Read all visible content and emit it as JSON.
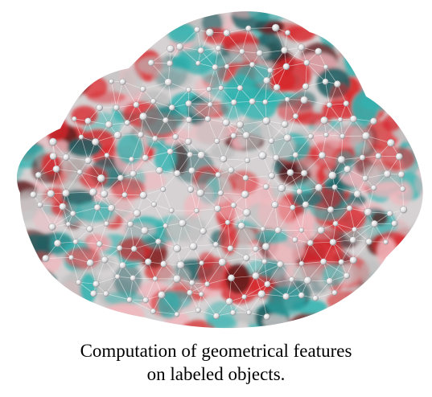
{
  "figure": {
    "subject": "labeled-object-mesh",
    "colors": {
      "red": "#d8262b",
      "dark_red": "#5a1a1c",
      "teal": "#2fb3b0",
      "dark_teal": "#1e5e62",
      "gray": "#bfbfbf",
      "pink": "#f0b7bd",
      "node": "#e9e9ea",
      "edge": "#ffffff"
    }
  },
  "caption": {
    "line1": "Computation of geometrical features",
    "line2": "on labeled objects."
  }
}
